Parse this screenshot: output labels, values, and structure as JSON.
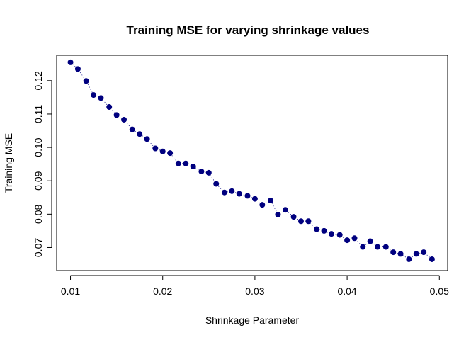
{
  "chart_data": {
    "type": "scatter",
    "title": "Training MSE for varying shrinkage values",
    "xlabel": "Shrinkage Parameter",
    "ylabel": "Training MSE",
    "xlim": [
      0.0085,
      0.0509
    ],
    "ylim": [
      0.0631,
      0.1276
    ],
    "x_ticks": [
      0.01,
      0.02,
      0.03,
      0.04,
      0.05
    ],
    "x_tick_labels": [
      "0.01",
      "0.02",
      "0.03",
      "0.04",
      "0.05"
    ],
    "y_ticks": [
      0.07,
      0.08,
      0.09,
      0.1,
      0.11,
      0.12
    ],
    "y_tick_labels": [
      "0.07",
      "0.08",
      "0.09",
      "0.10",
      "0.11",
      "0.12"
    ],
    "grid": false,
    "point_color": "#00007f",
    "line_style": "dotted",
    "series": [
      {
        "x": [
          0.01,
          0.0108,
          0.0117,
          0.0125,
          0.0133,
          0.0142,
          0.015,
          0.0158,
          0.0167,
          0.0175,
          0.0183,
          0.0192,
          0.02,
          0.0208,
          0.0217,
          0.0225,
          0.0233,
          0.0242,
          0.025,
          0.0258,
          0.0267,
          0.0275,
          0.0283,
          0.0292,
          0.03,
          0.0308,
          0.0317,
          0.0325,
          0.0333,
          0.0342,
          0.035,
          0.0358,
          0.0367,
          0.0375,
          0.0383,
          0.0392,
          0.04,
          0.0408,
          0.0417,
          0.0425,
          0.0433,
          0.0442,
          0.045,
          0.0458,
          0.0467,
          0.0475,
          0.0483,
          0.0492
        ],
        "y": [
          0.1255,
          0.1235,
          0.1199,
          0.1157,
          0.1148,
          0.1121,
          0.1097,
          0.1083,
          0.1054,
          0.104,
          0.1025,
          0.0997,
          0.0988,
          0.0983,
          0.0952,
          0.0952,
          0.0943,
          0.0928,
          0.0924,
          0.0891,
          0.0865,
          0.0869,
          0.0861,
          0.0855,
          0.0846,
          0.0828,
          0.0841,
          0.0799,
          0.0813,
          0.0792,
          0.0779,
          0.0779,
          0.0755,
          0.075,
          0.0741,
          0.0738,
          0.0722,
          0.0728,
          0.0702,
          0.0719,
          0.0702,
          0.0702,
          0.0686,
          0.0681,
          0.0665,
          0.0681,
          0.0686,
          0.0665
        ]
      }
    ]
  }
}
